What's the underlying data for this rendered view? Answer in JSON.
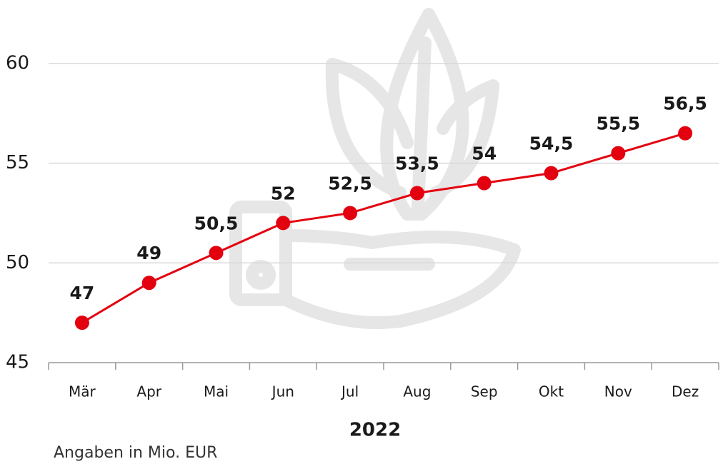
{
  "chart_data": {
    "type": "line",
    "x_label": "2022",
    "note": "Angaben in Mio. EUR",
    "categories": [
      "Mär",
      "Apr",
      "Mai",
      "Jun",
      "Jul",
      "Aug",
      "Sep",
      "Okt",
      "Nov",
      "Dez"
    ],
    "values": [
      47,
      49,
      50.5,
      52,
      52.5,
      53.5,
      54,
      54.5,
      55.5,
      56.5
    ],
    "value_labels": [
      "47",
      "49",
      "50,5",
      "52",
      "52,5",
      "53,5",
      "54",
      "54,5",
      "55,5",
      "56,5"
    ],
    "color": "#e3000f",
    "ylim": [
      45,
      62
    ],
    "yticks": [
      45,
      50,
      55,
      60
    ],
    "grid": true
  }
}
